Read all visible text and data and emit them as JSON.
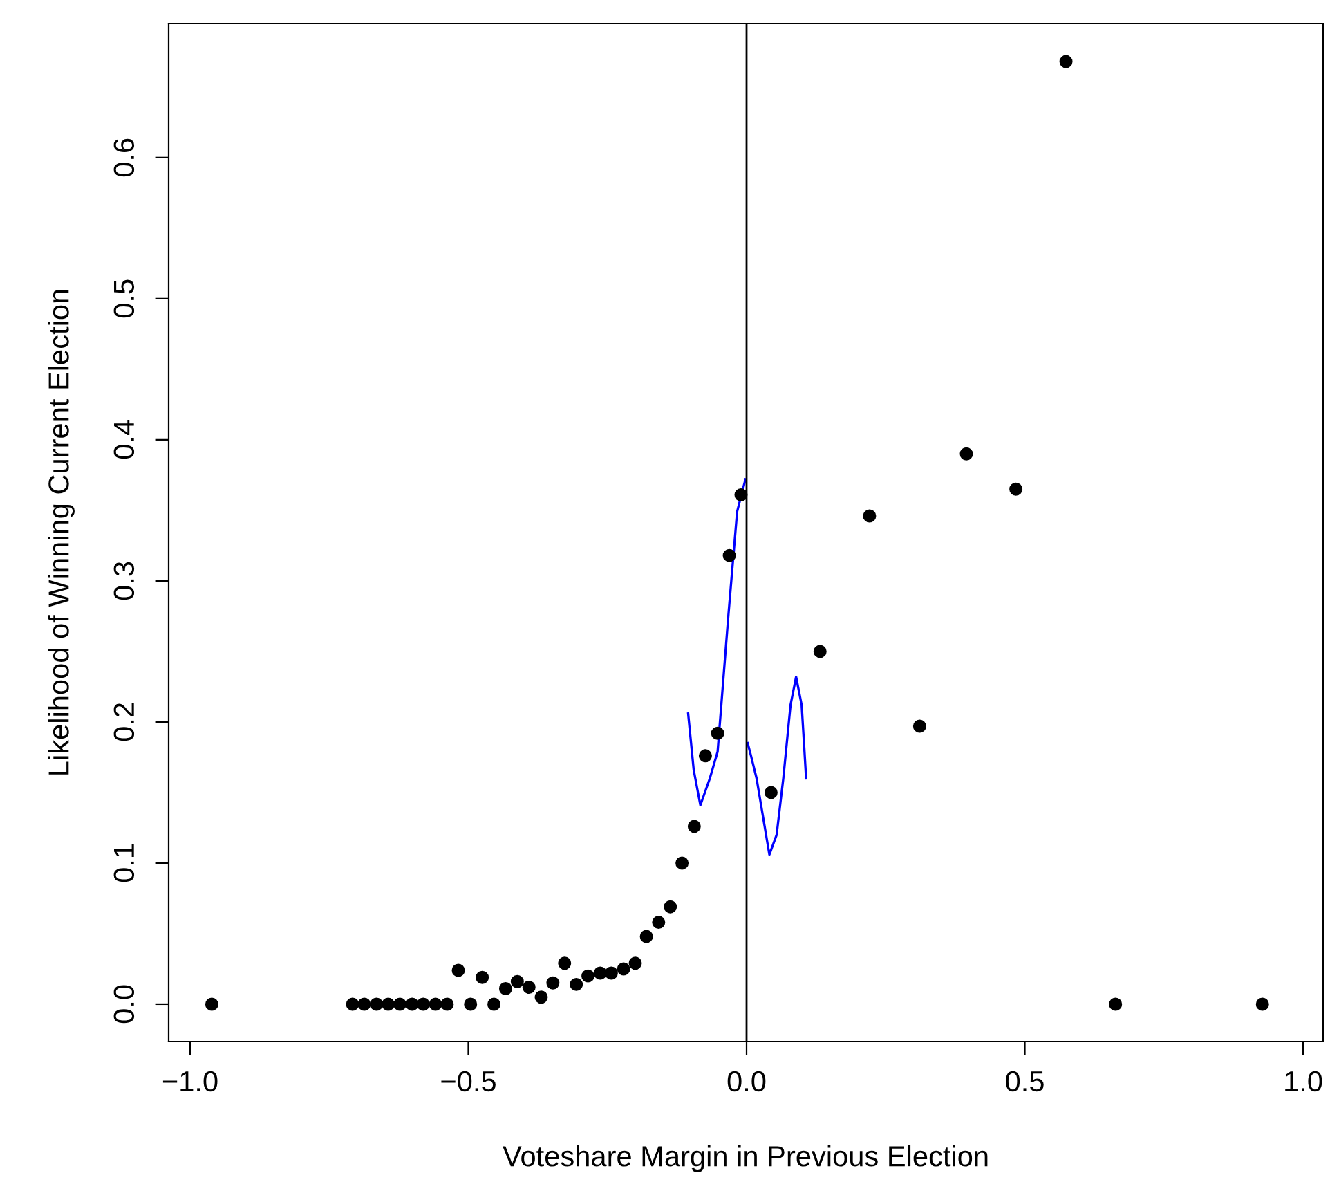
{
  "chart_data": {
    "type": "scatter",
    "xlabel": "Voteshare Margin in Previous Election",
    "ylabel": "Likelihood of Winning Current Election",
    "xlim": [
      -1.0385,
      1.036
    ],
    "ylim": [
      -0.0265,
      0.695
    ],
    "xticks": [
      {
        "value": -1.0,
        "label": "−1.0"
      },
      {
        "value": -0.5,
        "label": "−0.5"
      },
      {
        "value": 0.0,
        "label": "0.0"
      },
      {
        "value": 0.5,
        "label": "0.5"
      },
      {
        "value": 1.0,
        "label": "1.0"
      }
    ],
    "yticks": [
      {
        "value": 0.0,
        "label": "0.0"
      },
      {
        "value": 0.1,
        "label": "0.1"
      },
      {
        "value": 0.2,
        "label": "0.2"
      },
      {
        "value": 0.3,
        "label": "0.3"
      },
      {
        "value": 0.4,
        "label": "0.4"
      },
      {
        "value": 0.5,
        "label": "0.5"
      },
      {
        "value": 0.6,
        "label": "0.6"
      }
    ],
    "grid": false,
    "ref_lines": [
      {
        "axis": "x",
        "value": 0,
        "color": "#000000"
      }
    ],
    "series": [
      {
        "color": "#000000",
        "marker": "circle",
        "x": [
          -0.961,
          -0.708,
          -0.687,
          -0.665,
          -0.644,
          -0.623,
          -0.601,
          -0.581,
          -0.559,
          -0.538,
          -0.518,
          -0.496,
          -0.475,
          -0.454,
          -0.433,
          -0.412,
          -0.391,
          -0.369,
          -0.348,
          -0.327,
          -0.306,
          -0.285,
          -0.263,
          -0.243,
          -0.221,
          -0.2,
          -0.18,
          -0.158,
          -0.137,
          -0.116,
          -0.094,
          -0.074,
          -0.052,
          -0.031,
          -0.01,
          0.044,
          0.132,
          0.221,
          0.311,
          0.395,
          0.484,
          0.574,
          0.663,
          0.927
        ],
        "values": [
          0,
          0,
          0,
          0,
          0,
          0,
          0,
          0,
          0,
          0,
          0.024,
          0,
          0.019,
          0,
          0.011,
          0.016,
          0.012,
          0.005,
          0.015,
          0.029,
          0.014,
          0.02,
          0.022,
          0.022,
          0.025,
          0.029,
          0.048,
          0.058,
          0.069,
          0.1,
          0.126,
          0.176,
          0.192,
          0.318,
          0.361,
          0.15,
          0.25,
          0.346,
          0.197,
          0.39,
          0.365,
          0.668,
          0,
          0
        ]
      },
      {
        "type": "line",
        "color": "#0000ff",
        "marker": "none",
        "line_style": "solid",
        "x": [
          -0.105,
          -0.095,
          -0.083,
          -0.066,
          -0.052,
          -0.033,
          -0.017,
          -0.002
        ],
        "values": [
          0.206,
          0.166,
          0.141,
          0.16,
          0.179,
          0.274,
          0.349,
          0.372
        ]
      },
      {
        "type": "line",
        "color": "#0000ff",
        "marker": "none",
        "line_style": "solid",
        "x": [
          0.002,
          0.008,
          0.018,
          0.041,
          0.054,
          0.066,
          0.079,
          0.089,
          0.099,
          0.107
        ],
        "values": [
          0.185,
          0.176,
          0.16,
          0.106,
          0.12,
          0.16,
          0.212,
          0.232,
          0.212,
          0.16
        ]
      }
    ]
  }
}
